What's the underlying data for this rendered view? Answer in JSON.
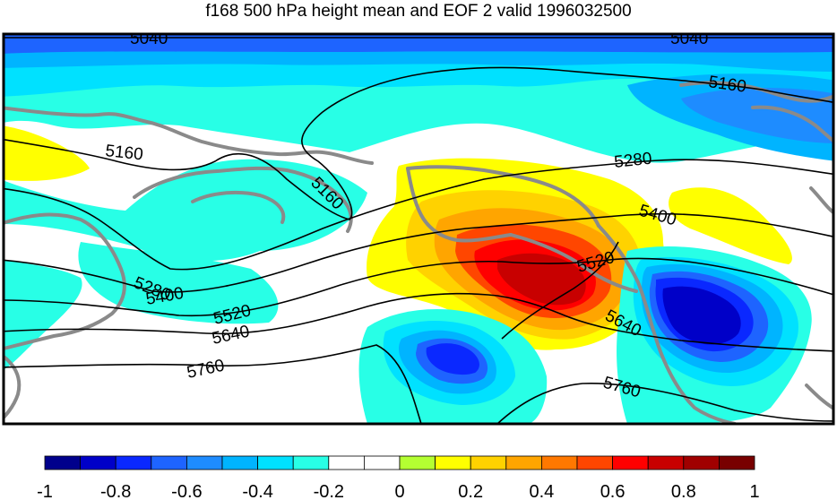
{
  "title": "f168 500 hPa height mean and EOF 2 valid 1996032500",
  "contour_labels": [
    "5040",
    "5040",
    "5160",
    "5160",
    "5160",
    "5280",
    "5280",
    "5400",
    "5400",
    "5520",
    "5520",
    "5640",
    "5640",
    "5760",
    "5760"
  ],
  "colorbar": {
    "ticks": [
      "-1",
      "-0.8",
      "-0.6",
      "-0.4",
      "-0.2",
      "0",
      "0.2",
      "0.4",
      "0.6",
      "0.8",
      "1"
    ],
    "colors": [
      "#00008c",
      "#0000c8",
      "#0a28ff",
      "#1e64ff",
      "#1e8cff",
      "#00b4ff",
      "#00e1ff",
      "#28ffe6",
      "#ffffff",
      "#ffffff",
      "#b4ff32",
      "#ffff00",
      "#ffd200",
      "#ffa500",
      "#ff7800",
      "#ff4600",
      "#ff0000",
      "#c80000",
      "#a00000",
      "#780000"
    ]
  },
  "colors": {
    "coastline": "#8a8a8a",
    "contour": "#000000"
  }
}
